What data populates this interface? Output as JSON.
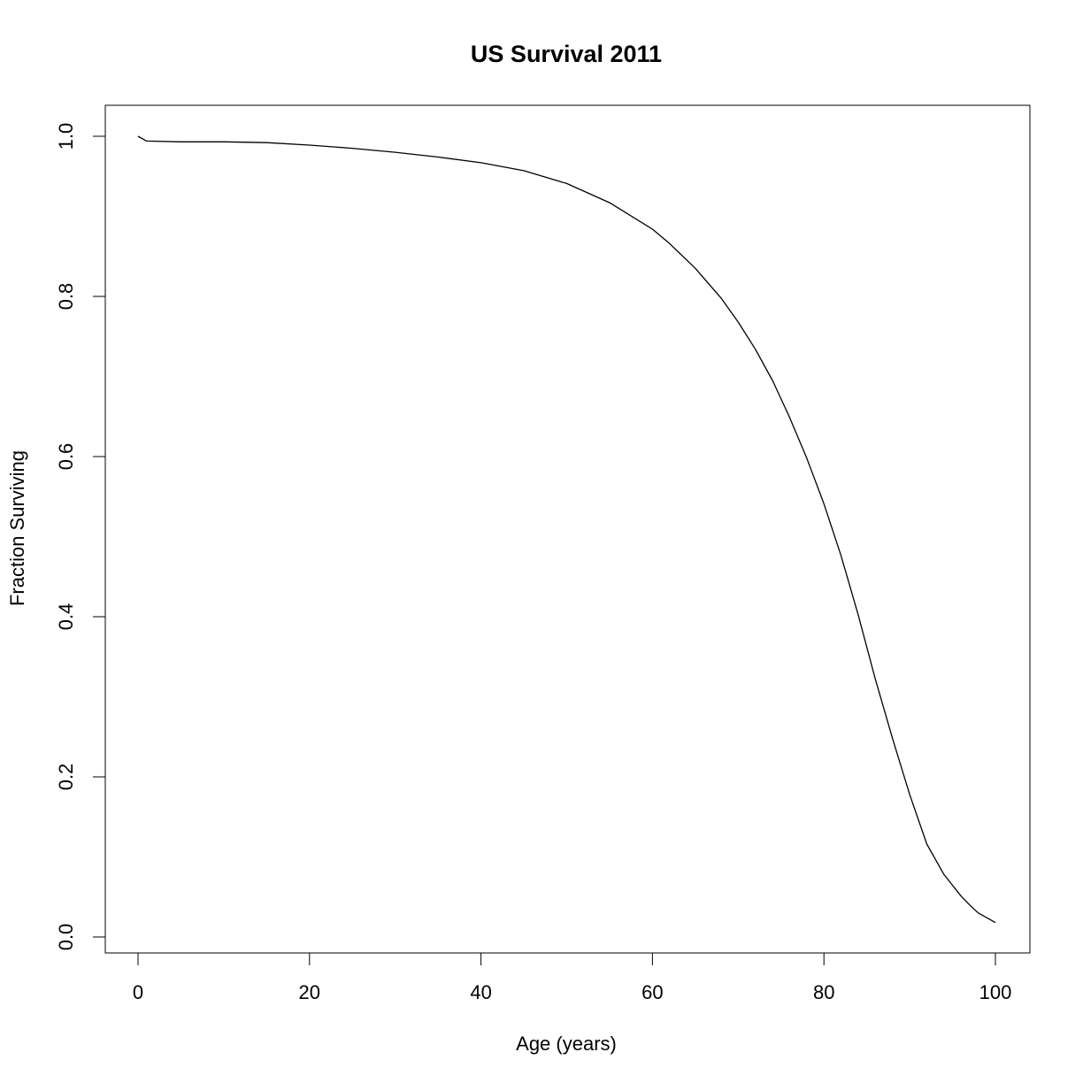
{
  "chart_data": {
    "type": "line",
    "title": "US Survival 2011",
    "xlabel": "Age (years)",
    "ylabel": "Fraction Surviving",
    "xlim": [
      0,
      100
    ],
    "ylim": [
      0,
      1
    ],
    "xticks": [
      "0",
      "20",
      "40",
      "60",
      "80",
      "100"
    ],
    "yticks": [
      "0.0",
      "0.2",
      "0.4",
      "0.6",
      "0.8",
      "1.0"
    ],
    "grid": false,
    "legend": "none",
    "series": [
      {
        "color": "#000000",
        "x": [
          0,
          1,
          5,
          10,
          15,
          20,
          25,
          30,
          35,
          40,
          45,
          50,
          55,
          60,
          62,
          65,
          68,
          70,
          72,
          74,
          76,
          78,
          80,
          82,
          84,
          86,
          88,
          90,
          92,
          94,
          96,
          97,
          98,
          100
        ],
        "y": [
          1.0,
          0.994,
          0.993,
          0.993,
          0.992,
          0.989,
          0.985,
          0.98,
          0.974,
          0.967,
          0.957,
          0.941,
          0.917,
          0.884,
          0.866,
          0.835,
          0.798,
          0.768,
          0.734,
          0.695,
          0.649,
          0.598,
          0.541,
          0.476,
          0.402,
          0.322,
          0.248,
          0.178,
          0.116,
          0.078,
          0.051,
          0.04,
          0.03,
          0.018
        ]
      }
    ]
  }
}
